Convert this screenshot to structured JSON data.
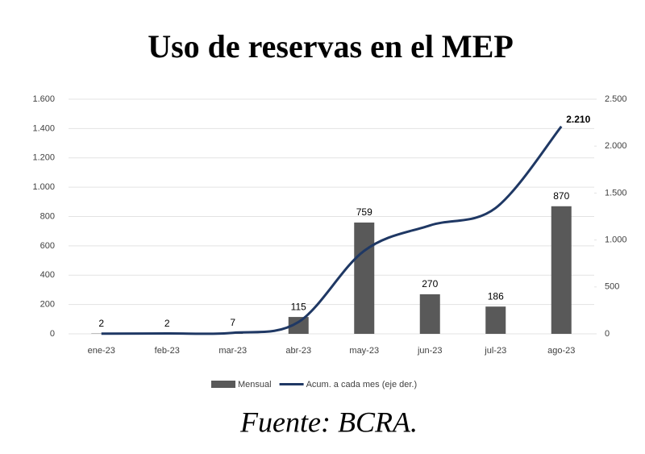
{
  "chart_data": {
    "type": "bar-line",
    "title": "Uso de reservas en el MEP",
    "categories": [
      "ene-23",
      "feb-23",
      "mar-23",
      "abr-23",
      "may-23",
      "jun-23",
      "jul-23",
      "ago-23"
    ],
    "series": [
      {
        "name": "Mensual",
        "type": "bar",
        "color": "#595959",
        "values": [
          2,
          2,
          7,
          115,
          759,
          270,
          186,
          870
        ]
      },
      {
        "name": "Acum. a cada mes (eje der.)",
        "type": "line",
        "axis": "y2",
        "color": "#1f3864",
        "values": [
          2,
          4,
          11,
          126,
          885,
          1155,
          1341,
          2210
        ],
        "value_labels": [
          null,
          null,
          null,
          null,
          null,
          null,
          null,
          "2.210"
        ]
      }
    ],
    "ylim": [
      0,
      1600
    ],
    "yticks": [
      0,
      200,
      400,
      600,
      800,
      {
        "value": 1000,
        "label": "1.000"
      },
      {
        "value": 1200,
        "label": "1.200"
      },
      {
        "value": 1400,
        "label": "1.400"
      },
      {
        "value": 1600,
        "label": "1.600"
      }
    ],
    "y2lim": [
      0,
      2500
    ],
    "y2ticks": [
      0,
      500,
      {
        "value": 1000,
        "label": "1.000"
      },
      {
        "value": 1500,
        "label": "1.500"
      },
      {
        "value": 2000,
        "label": "2.000"
      },
      {
        "value": 2500,
        "label": "2.500"
      }
    ],
    "grid": true,
    "legend": "bottom",
    "source": "Fuente: BCRA."
  }
}
